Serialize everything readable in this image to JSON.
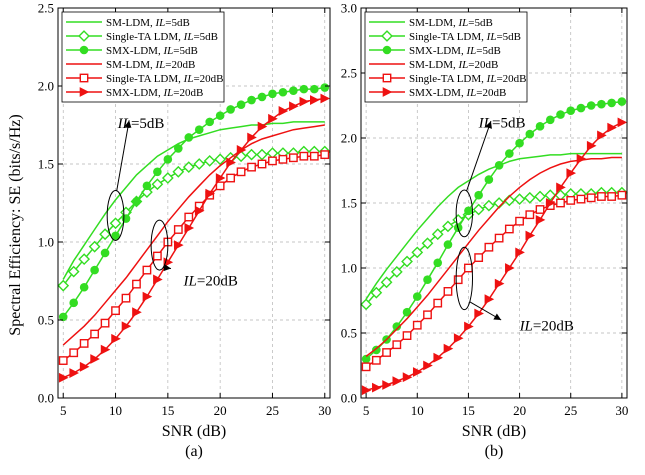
{
  "ylabel": "Spectral Efficiency: SE (bits/s/Hz)",
  "style": {
    "green": "#33dd22",
    "red": "#ee1111",
    "grid": "#b4b4b4"
  },
  "chart_data": [
    {
      "type": "line",
      "caption": "(a)",
      "xlabel": "SNR (dB)",
      "ylabel": "Spectral Efficiency: SE (bits/s/Hz)",
      "xlim": [
        4.5,
        30.5
      ],
      "ylim": [
        0,
        2.5
      ],
      "xticks": [
        5,
        10,
        15,
        20,
        25,
        30
      ],
      "yticks": [
        0.0,
        0.5,
        1.0,
        1.5,
        2.0,
        2.5
      ],
      "grid": true,
      "legend_position": "top-left",
      "x": [
        5,
        6,
        7,
        8,
        9,
        10,
        11,
        12,
        13,
        14,
        15,
        16,
        17,
        18,
        19,
        20,
        21,
        22,
        23,
        24,
        25,
        26,
        27,
        28,
        29,
        30
      ],
      "series": [
        {
          "name_plain": "SM-LDM, ",
          "name_italic": "IL",
          "name_rest": "=5dB",
          "color": "green",
          "marker": "none",
          "values": [
            0.76,
            0.88,
            0.98,
            1.08,
            1.18,
            1.27,
            1.35,
            1.43,
            1.49,
            1.55,
            1.59,
            1.63,
            1.66,
            1.68,
            1.7,
            1.72,
            1.73,
            1.74,
            1.75,
            1.75,
            1.76,
            1.76,
            1.77,
            1.77,
            1.77,
            1.77
          ]
        },
        {
          "name_plain": "Single-TA LDM, ",
          "name_italic": "IL",
          "name_rest": "=5dB",
          "color": "green",
          "marker": "diamond",
          "values": [
            0.72,
            0.81,
            0.89,
            0.97,
            1.05,
            1.12,
            1.19,
            1.26,
            1.32,
            1.37,
            1.41,
            1.45,
            1.48,
            1.5,
            1.52,
            1.53,
            1.54,
            1.55,
            1.56,
            1.56,
            1.57,
            1.57,
            1.57,
            1.58,
            1.58,
            1.58
          ]
        },
        {
          "name_plain": "SMX-LDM, ",
          "name_italic": "IL",
          "name_rest": "=5dB",
          "color": "green",
          "marker": "circle",
          "values": [
            0.52,
            0.61,
            0.71,
            0.82,
            0.93,
            1.04,
            1.15,
            1.26,
            1.36,
            1.45,
            1.53,
            1.6,
            1.67,
            1.72,
            1.77,
            1.81,
            1.85,
            1.88,
            1.91,
            1.93,
            1.95,
            1.96,
            1.97,
            1.98,
            1.98,
            1.99
          ]
        },
        {
          "name_plain": "SM-LDM, ",
          "name_italic": "IL",
          "name_rest": "=20dB",
          "color": "red",
          "marker": "none",
          "values": [
            0.34,
            0.4,
            0.46,
            0.53,
            0.61,
            0.69,
            0.77,
            0.86,
            0.95,
            1.04,
            1.13,
            1.21,
            1.29,
            1.36,
            1.43,
            1.49,
            1.54,
            1.59,
            1.63,
            1.66,
            1.68,
            1.7,
            1.72,
            1.73,
            1.74,
            1.75
          ]
        },
        {
          "name_plain": "Single-TA LDM, ",
          "name_italic": "IL",
          "name_rest": "=20dB",
          "color": "red",
          "marker": "square",
          "values": [
            0.24,
            0.29,
            0.35,
            0.41,
            0.48,
            0.56,
            0.64,
            0.73,
            0.82,
            0.91,
            1.0,
            1.08,
            1.16,
            1.23,
            1.3,
            1.36,
            1.41,
            1.45,
            1.48,
            1.5,
            1.52,
            1.53,
            1.54,
            1.55,
            1.55,
            1.56
          ]
        },
        {
          "name_plain": "SMX-LDM, ",
          "name_italic": "IL",
          "name_rest": "=20dB",
          "color": "red",
          "marker": "triangle-right",
          "values": [
            0.13,
            0.16,
            0.2,
            0.25,
            0.31,
            0.38,
            0.46,
            0.55,
            0.65,
            0.76,
            0.87,
            0.98,
            1.09,
            1.2,
            1.31,
            1.41,
            1.51,
            1.59,
            1.67,
            1.74,
            1.79,
            1.84,
            1.87,
            1.9,
            1.91,
            1.92
          ]
        }
      ],
      "annotations": [
        {
          "italic": "IL",
          "rest": "=5dB",
          "ellipse_center": [
            10,
            1.17
          ],
          "ellipse_rx": 0.8,
          "ellipse_ry": 0.16,
          "label_at": [
            10.2,
            1.73
          ],
          "arrow_to": [
            11.3,
            1.78
          ]
        },
        {
          "italic": "IL",
          "rest": "=20dB",
          "ellipse_center": [
            14.2,
            0.98
          ],
          "ellipse_rx": 0.8,
          "ellipse_ry": 0.16,
          "label_at": [
            16.5,
            0.72
          ],
          "arrow_to": [
            15.3,
            0.83
          ]
        }
      ]
    },
    {
      "type": "line",
      "caption": "(b)",
      "xlabel": "SNR (dB)",
      "ylabel": "",
      "xlim": [
        4.5,
        30.5
      ],
      "ylim": [
        0,
        3.0
      ],
      "xticks": [
        5,
        10,
        15,
        20,
        25,
        30
      ],
      "yticks": [
        0.0,
        0.5,
        1.0,
        1.5,
        2.0,
        2.5,
        3.0
      ],
      "grid": true,
      "legend_position": "top-left",
      "x": [
        5,
        6,
        7,
        8,
        9,
        10,
        11,
        12,
        13,
        14,
        15,
        16,
        17,
        18,
        19,
        20,
        21,
        22,
        23,
        24,
        25,
        26,
        27,
        28,
        29,
        30
      ],
      "series": [
        {
          "name_plain": "SM-LDM, ",
          "name_italic": "IL",
          "name_rest": "=5dB",
          "color": "green",
          "marker": "none",
          "values": [
            0.76,
            0.88,
            0.99,
            1.09,
            1.19,
            1.29,
            1.38,
            1.47,
            1.55,
            1.62,
            1.67,
            1.72,
            1.76,
            1.79,
            1.82,
            1.84,
            1.85,
            1.86,
            1.87,
            1.87,
            1.88,
            1.88,
            1.88,
            1.88,
            1.88,
            1.88
          ]
        },
        {
          "name_plain": "Single-TA LDM, ",
          "name_italic": "IL",
          "name_rest": "=5dB",
          "color": "green",
          "marker": "diamond",
          "values": [
            0.72,
            0.81,
            0.89,
            0.97,
            1.05,
            1.12,
            1.19,
            1.26,
            1.32,
            1.37,
            1.41,
            1.45,
            1.48,
            1.5,
            1.52,
            1.53,
            1.54,
            1.55,
            1.56,
            1.56,
            1.57,
            1.57,
            1.57,
            1.58,
            1.58,
            1.58
          ]
        },
        {
          "name_plain": "SMX-LDM, ",
          "name_italic": "IL",
          "name_rest": "=5dB",
          "color": "green",
          "marker": "circle",
          "values": [
            0.3,
            0.37,
            0.45,
            0.55,
            0.66,
            0.78,
            0.91,
            1.04,
            1.18,
            1.31,
            1.44,
            1.56,
            1.68,
            1.79,
            1.88,
            1.96,
            2.03,
            2.09,
            2.14,
            2.18,
            2.21,
            2.23,
            2.25,
            2.26,
            2.27,
            2.28
          ]
        },
        {
          "name_plain": "SM-LDM, ",
          "name_italic": "IL",
          "name_rest": "=20dB",
          "color": "red",
          "marker": "none",
          "values": [
            0.32,
            0.38,
            0.45,
            0.53,
            0.61,
            0.7,
            0.79,
            0.89,
            0.99,
            1.09,
            1.19,
            1.29,
            1.38,
            1.47,
            1.55,
            1.62,
            1.68,
            1.73,
            1.77,
            1.8,
            1.82,
            1.83,
            1.84,
            1.84,
            1.85,
            1.85
          ]
        },
        {
          "name_plain": "Single-TA LDM, ",
          "name_italic": "IL",
          "name_rest": "=20dB",
          "color": "red",
          "marker": "square",
          "values": [
            0.24,
            0.29,
            0.35,
            0.41,
            0.48,
            0.56,
            0.64,
            0.73,
            0.82,
            0.91,
            1.0,
            1.08,
            1.16,
            1.23,
            1.3,
            1.36,
            1.41,
            1.45,
            1.48,
            1.5,
            1.52,
            1.53,
            1.54,
            1.55,
            1.55,
            1.56
          ]
        },
        {
          "name_plain": "SMX-LDM, ",
          "name_italic": "IL",
          "name_rest": "=20dB",
          "color": "red",
          "marker": "triangle-right",
          "values": [
            0.06,
            0.08,
            0.1,
            0.13,
            0.16,
            0.2,
            0.25,
            0.31,
            0.38,
            0.46,
            0.55,
            0.65,
            0.76,
            0.88,
            1.0,
            1.12,
            1.25,
            1.37,
            1.5,
            1.62,
            1.73,
            1.84,
            1.94,
            2.02,
            2.08,
            2.12
          ]
        }
      ],
      "annotations": [
        {
          "italic": "IL",
          "rest": "=5dB",
          "ellipse_center": [
            14.6,
            1.42
          ],
          "ellipse_rx": 0.8,
          "ellipse_ry": 0.18,
          "label_at": [
            16.0,
            2.08
          ],
          "arrow_to": [
            17.2,
            2.13
          ]
        },
        {
          "italic": "IL",
          "rest": "=20dB",
          "ellipse_center": [
            14.6,
            0.92
          ],
          "ellipse_rx": 0.8,
          "ellipse_ry": 0.24,
          "label_at": [
            20.0,
            0.52
          ],
          "arrow_to": [
            18.2,
            0.6
          ]
        }
      ]
    }
  ]
}
